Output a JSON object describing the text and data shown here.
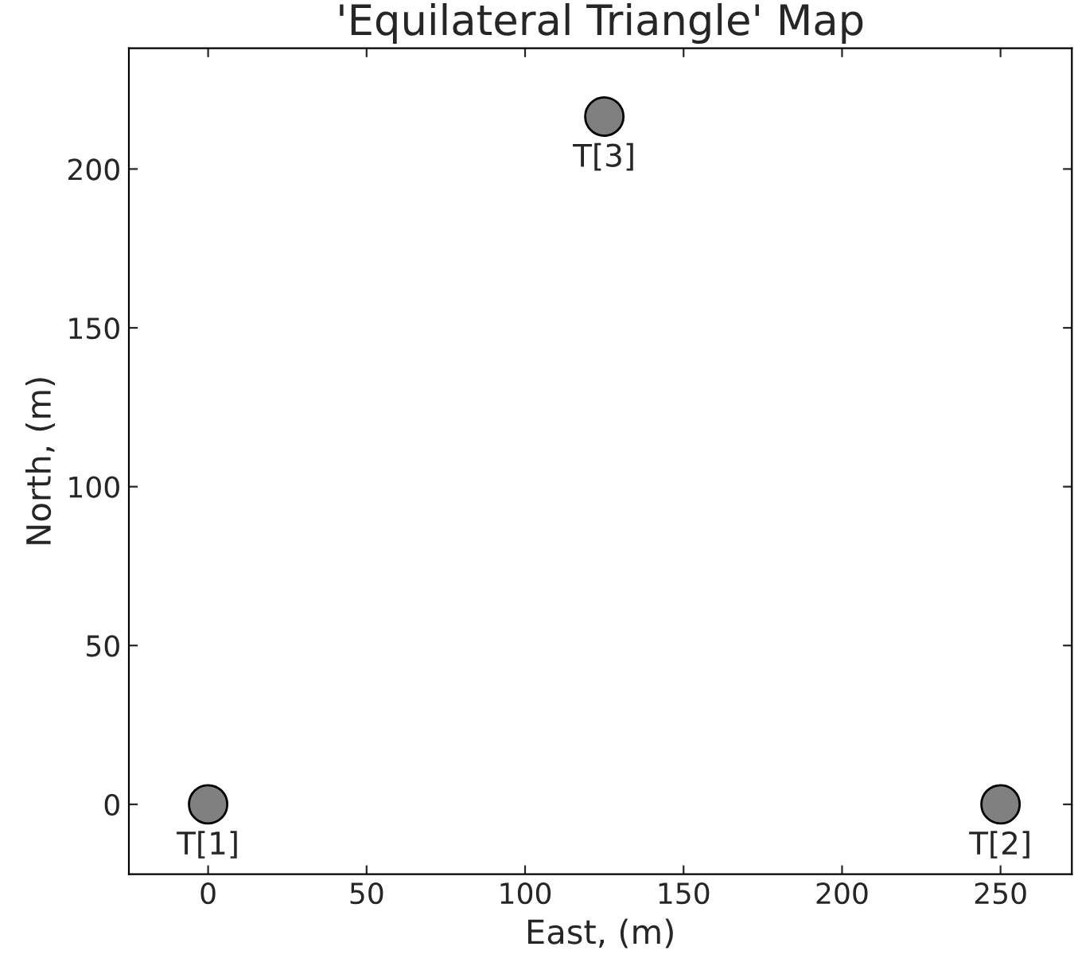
{
  "chart_data": {
    "type": "scatter",
    "title": "'Equilateral Triangle' Map",
    "xlabel": "East, (m)",
    "ylabel": "North, (m)",
    "x": [
      0,
      250,
      125
    ],
    "series": [
      {
        "color": "#808080",
        "values": [
          0,
          0,
          216.5
        ]
      }
    ],
    "marker": "circle",
    "annotations": [
      {
        "text": "T[1]",
        "x": 0,
        "y": 0
      },
      {
        "text": "T[2]",
        "x": 250,
        "y": 0
      },
      {
        "text": "T[3]",
        "x": 125,
        "y": 216.5
      }
    ],
    "xlim": [
      -25,
      272.5
    ],
    "ylim": [
      -22,
      238
    ],
    "xticks": [
      0,
      50,
      100,
      150,
      200,
      250
    ],
    "yticks": [
      0,
      50,
      100,
      150,
      200
    ],
    "grid": false,
    "legend": false
  }
}
